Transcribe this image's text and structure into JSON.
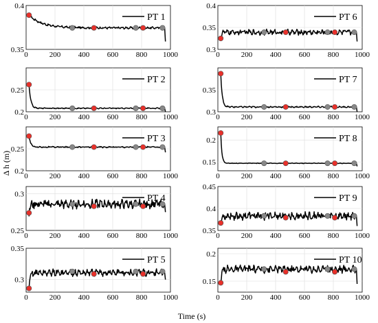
{
  "chart_data": {
    "type": "line",
    "xlabel": "Time (s)",
    "ylabel": "Δ h (m)",
    "xlim": [
      0,
      1000
    ],
    "xticks": [
      0,
      200,
      400,
      600,
      800,
      1000
    ],
    "grid": true,
    "marker_colors": {
      "red": "#e8302a",
      "gray": "#888888",
      "edge": "#555555"
    },
    "panels": [
      {
        "legend": "PT 1",
        "ylim": [
          0.35,
          0.4
        ],
        "yticks": [
          0.35,
          0.4
        ],
        "ytick_labels": [
          "0.35",
          "0.4"
        ],
        "initial": 0.389,
        "steady": 0.3745,
        "decay": 90,
        "noise": 0.0009,
        "end_drop": 0.359,
        "markers": [
          {
            "x": 20,
            "y": 0.389,
            "c": "red"
          },
          {
            "x": 320,
            "y": 0.3745,
            "c": "gray"
          },
          {
            "x": 470,
            "y": 0.3745,
            "c": "red"
          },
          {
            "x": 760,
            "y": 0.3745,
            "c": "gray"
          },
          {
            "x": 810,
            "y": 0.3745,
            "c": "red"
          },
          {
            "x": 945,
            "y": 0.3745,
            "c": "gray"
          }
        ]
      },
      {
        "legend": "PT 6",
        "ylim": [
          0.3,
          0.4
        ],
        "yticks": [
          0.3,
          0.35,
          0.4
        ],
        "ytick_labels": [
          "0.3",
          "0.35",
          "0.4"
        ],
        "initial": 0.325,
        "steady": 0.339,
        "decay": 6,
        "noise": 0.0045,
        "end_drop": 0.318,
        "markers": [
          {
            "x": 20,
            "y": 0.325,
            "c": "red"
          },
          {
            "x": 320,
            "y": 0.339,
            "c": "gray"
          },
          {
            "x": 470,
            "y": 0.339,
            "c": "red"
          },
          {
            "x": 760,
            "y": 0.339,
            "c": "gray"
          },
          {
            "x": 810,
            "y": 0.339,
            "c": "red"
          },
          {
            "x": 945,
            "y": 0.339,
            "c": "gray"
          }
        ]
      },
      {
        "legend": "PT 2",
        "ylim": [
          0.2,
          0.3
        ],
        "yticks": [
          0.2,
          0.25
        ],
        "ytick_labels": [
          "0.2",
          "0.25"
        ],
        "initial": 0.262,
        "steady": 0.208,
        "decay": 12,
        "noise": 0.0009,
        "end_drop": 0.2,
        "markers": [
          {
            "x": 20,
            "y": 0.262,
            "c": "red"
          },
          {
            "x": 320,
            "y": 0.208,
            "c": "gray"
          },
          {
            "x": 470,
            "y": 0.208,
            "c": "red"
          },
          {
            "x": 760,
            "y": 0.208,
            "c": "gray"
          },
          {
            "x": 810,
            "y": 0.208,
            "c": "red"
          },
          {
            "x": 945,
            "y": 0.208,
            "c": "gray"
          }
        ]
      },
      {
        "legend": "PT 7",
        "ylim": [
          0.3,
          0.4
        ],
        "yticks": [
          0.3,
          0.35
        ],
        "ytick_labels": [
          "0.3",
          "0.35"
        ],
        "initial": 0.387,
        "steady": 0.311,
        "decay": 10,
        "noise": 0.0012,
        "end_drop": 0.3,
        "markers": [
          {
            "x": 20,
            "y": 0.387,
            "c": "red"
          },
          {
            "x": 320,
            "y": 0.311,
            "c": "gray"
          },
          {
            "x": 470,
            "y": 0.311,
            "c": "red"
          },
          {
            "x": 760,
            "y": 0.311,
            "c": "gray"
          },
          {
            "x": 810,
            "y": 0.311,
            "c": "red"
          },
          {
            "x": 945,
            "y": 0.311,
            "c": "gray"
          }
        ]
      },
      {
        "legend": "PT 3",
        "ylim": [
          0.2,
          0.3
        ],
        "yticks": [
          0.2,
          0.25
        ],
        "ytick_labels": [
          "0.2",
          "0.25"
        ],
        "initial": 0.279,
        "steady": 0.254,
        "decay": 12,
        "noise": 0.0011,
        "end_drop": 0.242,
        "markers": [
          {
            "x": 20,
            "y": 0.279,
            "c": "red"
          },
          {
            "x": 320,
            "y": 0.254,
            "c": "gray"
          },
          {
            "x": 470,
            "y": 0.254,
            "c": "red"
          },
          {
            "x": 760,
            "y": 0.254,
            "c": "gray"
          },
          {
            "x": 810,
            "y": 0.254,
            "c": "red"
          },
          {
            "x": 945,
            "y": 0.254,
            "c": "gray"
          }
        ]
      },
      {
        "legend": "PT 8",
        "ylim": [
          0.13,
          0.23
        ],
        "yticks": [
          0.15,
          0.2
        ],
        "ytick_labels": [
          "0.15",
          "0.2"
        ],
        "initial": 0.216,
        "steady": 0.147,
        "decay": 8,
        "noise": 0.0005,
        "end_drop": 0.14,
        "markers": [
          {
            "x": 20,
            "y": 0.216,
            "c": "red"
          },
          {
            "x": 320,
            "y": 0.147,
            "c": "gray"
          },
          {
            "x": 470,
            "y": 0.147,
            "c": "red"
          },
          {
            "x": 760,
            "y": 0.147,
            "c": "gray"
          },
          {
            "x": 810,
            "y": 0.147,
            "c": "red"
          },
          {
            "x": 945,
            "y": 0.147,
            "c": "gray"
          }
        ]
      },
      {
        "legend": "PT 4",
        "ylim": [
          0.25,
          0.31
        ],
        "yticks": [
          0.25,
          0.3
        ],
        "ytick_labels": [
          "0.25",
          "0.3"
        ],
        "initial": 0.274,
        "steady": 0.286,
        "decay": 8,
        "noise": 0.0045,
        "end_drop": 0.275,
        "markers": [
          {
            "x": 20,
            "y": 0.274,
            "c": "red"
          },
          {
            "x": 320,
            "y": 0.286,
            "c": "gray"
          },
          {
            "x": 470,
            "y": 0.283,
            "c": "red"
          },
          {
            "x": 760,
            "y": 0.286,
            "c": "gray"
          },
          {
            "x": 810,
            "y": 0.283,
            "c": "red"
          },
          {
            "x": 945,
            "y": 0.286,
            "c": "gray"
          }
        ]
      },
      {
        "legend": "PT 9",
        "ylim": [
          0.35,
          0.45
        ],
        "yticks": [
          0.35,
          0.4,
          0.45
        ],
        "ytick_labels": [
          "0.35",
          "0.4",
          "0.45"
        ],
        "initial": 0.367,
        "steady": 0.383,
        "decay": 8,
        "noise": 0.0065,
        "end_drop": 0.36,
        "markers": [
          {
            "x": 20,
            "y": 0.367,
            "c": "red"
          },
          {
            "x": 320,
            "y": 0.383,
            "c": "gray"
          },
          {
            "x": 470,
            "y": 0.379,
            "c": "red"
          },
          {
            "x": 760,
            "y": 0.383,
            "c": "gray"
          },
          {
            "x": 810,
            "y": 0.379,
            "c": "red"
          },
          {
            "x": 945,
            "y": 0.383,
            "c": "gray"
          }
        ]
      },
      {
        "legend": "PT 5",
        "ylim": [
          0.28,
          0.35
        ],
        "yticks": [
          0.3,
          0.35
        ],
        "ytick_labels": [
          "0.3",
          "0.35"
        ],
        "initial": 0.286,
        "steady": 0.311,
        "decay": 8,
        "noise": 0.004,
        "end_drop": 0.3,
        "markers": [
          {
            "x": 20,
            "y": 0.286,
            "c": "red"
          },
          {
            "x": 320,
            "y": 0.313,
            "c": "gray"
          },
          {
            "x": 470,
            "y": 0.309,
            "c": "red"
          },
          {
            "x": 760,
            "y": 0.313,
            "c": "gray"
          },
          {
            "x": 810,
            "y": 0.309,
            "c": "red"
          },
          {
            "x": 945,
            "y": 0.313,
            "c": "gray"
          }
        ]
      },
      {
        "legend": "PT 10",
        "ylim": [
          0.13,
          0.21
        ],
        "yticks": [
          0.15,
          0.2
        ],
        "ytick_labels": [
          "0.15",
          "0.2"
        ],
        "initial": 0.147,
        "steady": 0.172,
        "decay": 8,
        "noise": 0.005,
        "end_drop": 0.145,
        "markers": [
          {
            "x": 20,
            "y": 0.147,
            "c": "red"
          },
          {
            "x": 320,
            "y": 0.172,
            "c": "gray"
          },
          {
            "x": 470,
            "y": 0.167,
            "c": "red"
          },
          {
            "x": 760,
            "y": 0.172,
            "c": "gray"
          },
          {
            "x": 810,
            "y": 0.167,
            "c": "red"
          },
          {
            "x": 945,
            "y": 0.172,
            "c": "gray"
          }
        ]
      }
    ]
  }
}
